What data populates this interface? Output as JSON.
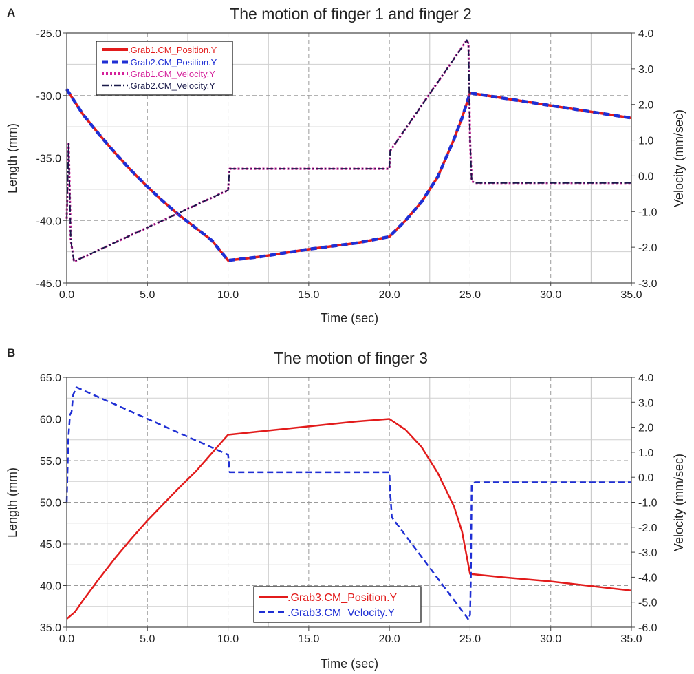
{
  "chart_data": [
    {
      "panel": "A",
      "type": "line",
      "title": "The motion of finger 1 and finger 2",
      "xlabel": "Time (sec)",
      "ylabel": "Length (mm)",
      "y2label": "Velocity (mm/sec)",
      "xlim": [
        0,
        35
      ],
      "ylim": [
        -45,
        -25
      ],
      "y2lim": [
        -3,
        4
      ],
      "xticks": [
        "0.0",
        "5.0",
        "10.0",
        "15.0",
        "20.0",
        "25.0",
        "30.0",
        "35.0"
      ],
      "yticks": [
        "-45.0",
        "-40.0",
        "-35.0",
        "-30.0",
        "-25.0"
      ],
      "y2ticks": [
        "-3.0",
        "-2.0",
        "-1.0",
        "0.0",
        "1.0",
        "2.0",
        "3.0",
        "4.0"
      ],
      "grid": true,
      "legend_position": "top-left",
      "series": [
        {
          "name": ".Grab1.CM_Position.Y",
          "axis": "left",
          "style": "solid",
          "color": "#e21b1b",
          "x": [
            0,
            0.5,
            1,
            2,
            3,
            4,
            5,
            6,
            7,
            8,
            9,
            10,
            12,
            15,
            18,
            20,
            21,
            22,
            23,
            24,
            24.5,
            25,
            25.5,
            30,
            35
          ],
          "y": [
            -29.5,
            -30.5,
            -31.5,
            -33.1,
            -34.6,
            -36.0,
            -37.3,
            -38.5,
            -39.6,
            -40.6,
            -41.6,
            -43.2,
            -42.9,
            -42.3,
            -41.8,
            -41.3,
            -40.0,
            -38.5,
            -36.5,
            -33.5,
            -31.8,
            -29.8,
            -29.9,
            -30.8,
            -31.8
          ]
        },
        {
          "name": ".Grab2.CM_Position.Y",
          "axis": "left",
          "style": "dashed",
          "color": "#1f2fd4",
          "x": [
            0,
            0.5,
            1,
            2,
            3,
            4,
            5,
            6,
            7,
            8,
            9,
            10,
            12,
            15,
            18,
            20,
            21,
            22,
            23,
            24,
            24.5,
            25,
            25.5,
            30,
            35
          ],
          "y": [
            -29.5,
            -30.5,
            -31.5,
            -33.1,
            -34.6,
            -36.0,
            -37.3,
            -38.5,
            -39.6,
            -40.6,
            -41.6,
            -43.2,
            -42.9,
            -42.3,
            -41.8,
            -41.3,
            -40.0,
            -38.5,
            -36.5,
            -33.5,
            -31.8,
            -29.8,
            -29.9,
            -30.8,
            -31.8
          ]
        },
        {
          "name": ".Grab1.CM_Velocity.Y",
          "axis": "right",
          "style": "dotted",
          "color": "#d4209a",
          "x": [
            0,
            0.12,
            0.25,
            0.45,
            10,
            10.05,
            10.1,
            20,
            20.05,
            24.8,
            24.9,
            25,
            25.1,
            25.3,
            35
          ],
          "y": [
            -1.2,
            0.9,
            -1.8,
            -2.4,
            -0.4,
            -0.1,
            0.2,
            0.2,
            0.7,
            3.8,
            3.7,
            1.0,
            -0.15,
            -0.2,
            -0.2
          ]
        },
        {
          "name": ".Grab2.CM_Velocity.Y",
          "axis": "right",
          "style": "dashdot",
          "color": "#1a1a4a",
          "x": [
            0,
            0.12,
            0.25,
            0.45,
            10,
            10.05,
            10.1,
            20,
            20.05,
            24.8,
            24.9,
            25,
            25.1,
            25.3,
            35
          ],
          "y": [
            -1.2,
            0.9,
            -1.8,
            -2.4,
            -0.4,
            -0.1,
            0.2,
            0.2,
            0.7,
            3.8,
            3.7,
            1.0,
            -0.15,
            -0.2,
            -0.2
          ]
        }
      ]
    },
    {
      "panel": "B",
      "type": "line",
      "title": "The motion of finger 3",
      "xlabel": "Time (sec)",
      "ylabel": "Length (mm)",
      "y2label": "Velocity (mm/sec)",
      "xlim": [
        0,
        35
      ],
      "ylim": [
        35,
        65
      ],
      "y2lim": [
        -6,
        4
      ],
      "xticks": [
        "0.0",
        "5.0",
        "10.0",
        "15.0",
        "20.0",
        "25.0",
        "30.0",
        "35.0"
      ],
      "yticks": [
        "35.0",
        "40.0",
        "45.0",
        "50.0",
        "55.0",
        "60.0",
        "65.0"
      ],
      "y2ticks": [
        "-6.0",
        "-5.0",
        "-4.0",
        "-3.0",
        "-2.0",
        "-1.0",
        "0.0",
        "1.0",
        "2.0",
        "3.0",
        "4.0"
      ],
      "grid": true,
      "legend_position": "bottom-center",
      "series": [
        {
          "name": ".Grab3.CM_Position.Y",
          "axis": "left",
          "style": "solid",
          "color": "#e21b1b",
          "x": [
            0,
            0.5,
            1,
            2,
            3,
            4,
            5,
            6,
            7,
            8,
            9,
            10,
            12,
            15,
            18,
            20,
            21,
            22,
            23,
            24,
            24.5,
            25,
            27,
            30,
            35
          ],
          "y": [
            36.0,
            36.8,
            38.2,
            40.8,
            43.3,
            45.6,
            47.8,
            49.8,
            51.8,
            53.7,
            55.9,
            58.1,
            58.5,
            59.1,
            59.7,
            60.0,
            58.7,
            56.6,
            53.5,
            49.5,
            46.5,
            41.4,
            41.0,
            40.5,
            39.4
          ]
        },
        {
          "name": ".Grab3.CM_Velocity.Y",
          "axis": "right",
          "style": "dashed",
          "color": "#1f2fd4",
          "x": [
            0,
            0.1,
            0.2,
            0.3,
            0.4,
            0.6,
            10,
            10.05,
            10.1,
            20,
            20.05,
            20.15,
            24.8,
            24.9,
            25,
            25.05,
            25.1,
            25.3,
            35
          ],
          "y": [
            -1.0,
            1.5,
            2.5,
            2.6,
            3.3,
            3.6,
            0.9,
            0.6,
            0.2,
            0.2,
            -0.6,
            -1.6,
            -5.6,
            -5.7,
            -5.5,
            -4.0,
            -0.3,
            -0.2,
            -0.2
          ]
        }
      ]
    }
  ],
  "panel_a": {
    "letter": "A",
    "title": "The motion of finger 1 and finger 2",
    "xlabel": "Time (sec)",
    "ylabel": "Length (mm)",
    "y2label": "Velocity (mm/sec)",
    "legend": [
      ".Grab1.CM_Position.Y",
      ".Grab2.CM_Position.Y",
      ".Grab1.CM_Velocity.Y",
      ".Grab2.CM_Velocity.Y"
    ]
  },
  "panel_b": {
    "letter": "B",
    "title": "The motion of finger 3",
    "xlabel": "Time (sec)",
    "ylabel": "Length (mm)",
    "y2label": "Velocity (mm/sec)",
    "legend": [
      ".Grab3.CM_Position.Y",
      ".Grab3.CM_Velocity.Y"
    ]
  }
}
